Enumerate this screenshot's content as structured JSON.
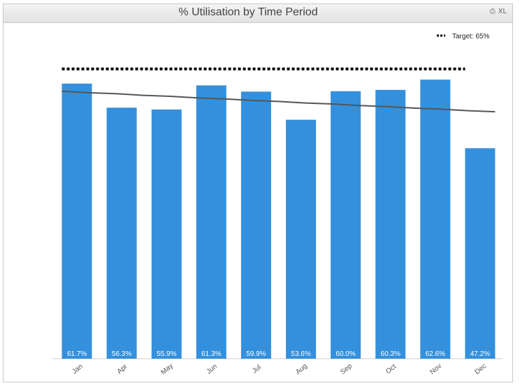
{
  "window": {
    "title": "% Utilisation by Time Period",
    "icons": [
      "print-icon",
      "excel-icon"
    ],
    "excel_label": "XL"
  },
  "chart_data": {
    "type": "bar",
    "title": "% Utilisation by Time Period",
    "categories": [
      "Jan",
      "Apr",
      "May",
      "Jun",
      "Jul",
      "Aug",
      "Sep",
      "Oct",
      "Nov",
      "Dec"
    ],
    "series": [
      {
        "values": [
          61.7,
          56.3,
          55.9,
          61.3,
          59.9,
          53.6,
          60.0,
          60.3,
          62.6,
          47.2
        ],
        "labels": [
          "61.7%",
          "56.3%",
          "55.9%",
          "61.3%",
          "59.9%",
          "53.6%",
          "60.0%",
          "60.3%",
          "62.6%",
          "47.2%"
        ],
        "color": "#3490dc"
      }
    ],
    "trend_line": {
      "start": 60.0,
      "end": 55.4,
      "color": "#555555"
    },
    "target": {
      "label": "Target: 65%",
      "value": 65,
      "style": "dotted",
      "color": "#000000"
    },
    "ylim": [
      0,
      72
    ],
    "y_axis_shown": false,
    "grid": false,
    "legend_position": "top-right"
  }
}
